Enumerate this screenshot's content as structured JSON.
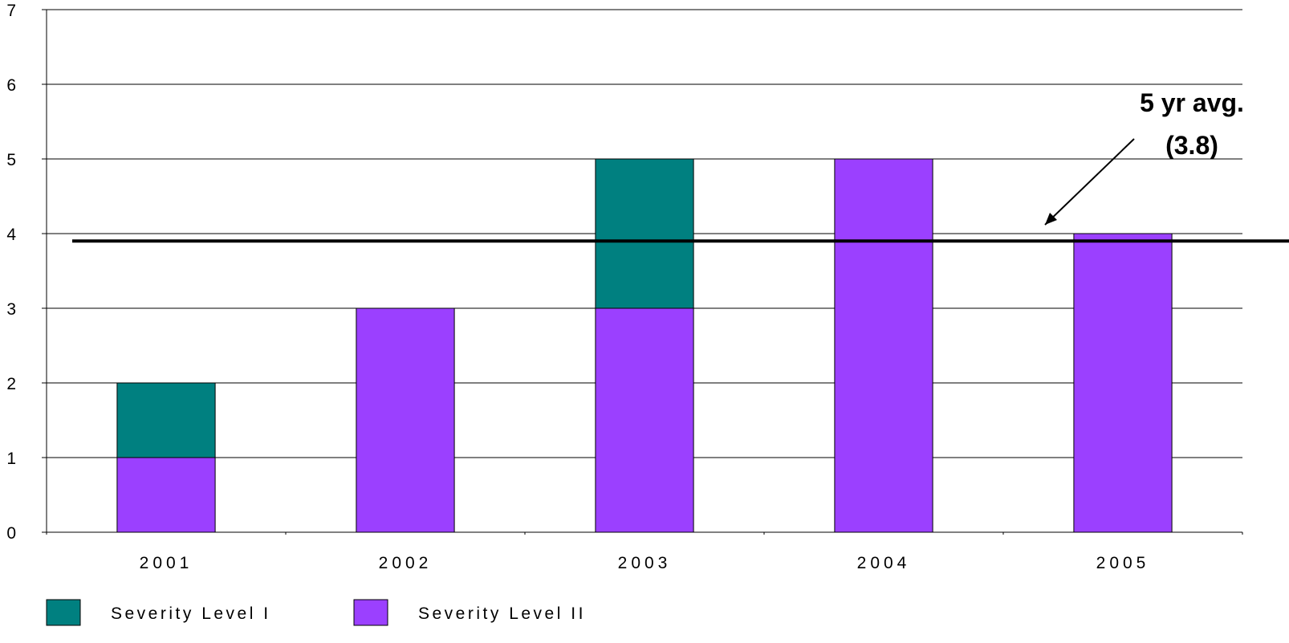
{
  "chart_data": {
    "type": "bar",
    "stacked": true,
    "categories": [
      "2001",
      "2002",
      "2003",
      "2004",
      "2005"
    ],
    "series": [
      {
        "name": "Severity Level II",
        "values": [
          1,
          3,
          3,
          5,
          4
        ],
        "color": "#9B40FF"
      },
      {
        "name": "Severity Level I",
        "values": [
          1,
          0,
          2,
          0,
          0
        ],
        "color": "#008080"
      }
    ],
    "legend_order": [
      "Severity Level I",
      "Severity Level II"
    ],
    "ylim": [
      0,
      7
    ],
    "yticks": [
      "0",
      "1",
      "2",
      "3",
      "4",
      "5",
      "6",
      "7"
    ],
    "grid": true,
    "legend_position": "bottom-left",
    "reference_line": {
      "value": 3.9
    },
    "annotation": {
      "line1": "5 yr avg.",
      "line2": "(3.8)"
    }
  }
}
